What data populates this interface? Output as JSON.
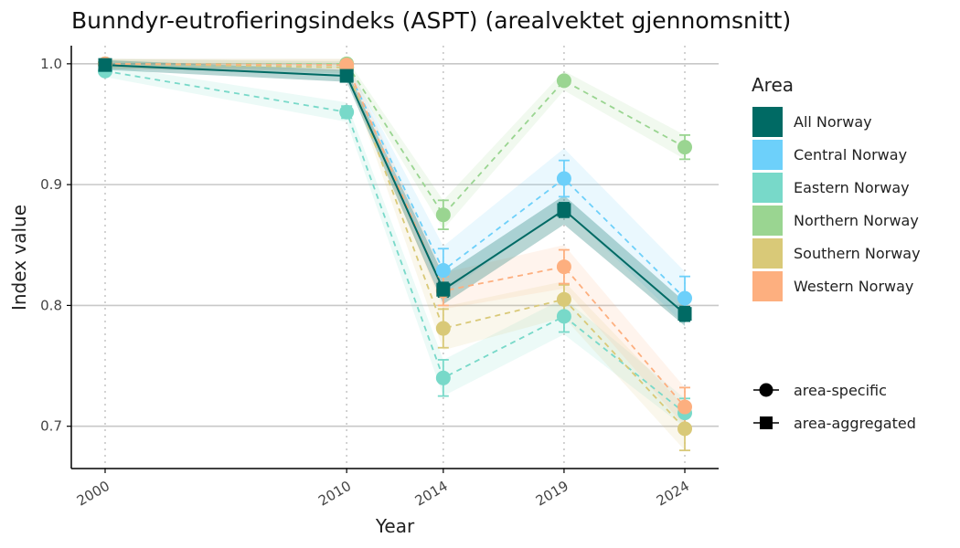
{
  "chart_data": {
    "type": "line",
    "title": "Bunndyr-eutrofieringsindeks (ASPT) (arealvektet gjennomsnitt)",
    "xlabel": "Year",
    "ylabel": "Index value",
    "x": [
      2000,
      2010,
      2014,
      2019,
      2024
    ],
    "x_tick_labels": [
      "2000",
      "2010",
      "2014",
      "2019",
      "2024"
    ],
    "xlim": [
      1998.6,
      2025.4
    ],
    "ylim": [
      0.665,
      1.015
    ],
    "y_ticks": [
      0.7,
      0.8,
      0.9,
      1.0
    ],
    "y_tick_labels": [
      "0.7",
      "0.8",
      "0.9",
      "1.0"
    ],
    "grid": {
      "horizontal": true,
      "vertical_dotted": true
    },
    "legend_position": "right",
    "legend_title": "Area",
    "series": [
      {
        "name": "All Norway",
        "color": "#006a64",
        "marker": "square",
        "line": "solid",
        "values": [
          0.999,
          0.99,
          0.813,
          0.879,
          0.793
        ],
        "err": [
          0.002,
          0.003,
          0.006,
          0.006,
          0.006
        ],
        "band": [
          0.004,
          0.005,
          0.012,
          0.012,
          0.01
        ]
      },
      {
        "name": "Central Norway",
        "color": "#6dd0fa",
        "marker": "circle",
        "line": "dashed",
        "values": [
          1.0,
          0.997,
          0.829,
          0.905,
          0.806
        ],
        "err": [
          0.002,
          0.003,
          0.018,
          0.015,
          0.018
        ],
        "band": [
          0.004,
          0.005,
          0.02,
          0.025,
          0.022
        ]
      },
      {
        "name": "Eastern Norway",
        "color": "#78d9c9",
        "marker": "circle",
        "line": "dashed",
        "values": [
          0.994,
          0.96,
          0.74,
          0.791,
          0.711
        ],
        "err": [
          0.003,
          0.005,
          0.015,
          0.013,
          0.012
        ],
        "band": [
          0.005,
          0.008,
          0.015,
          0.015,
          0.012
        ]
      },
      {
        "name": "Northern Norway",
        "color": "#9ad591",
        "marker": "circle",
        "line": "dashed",
        "values": [
          1.0,
          1.0,
          0.875,
          0.986,
          0.931
        ],
        "err": [
          0.002,
          0.002,
          0.012,
          0.003,
          0.01
        ],
        "band": [
          0.004,
          0.004,
          0.012,
          0.008,
          0.01
        ]
      },
      {
        "name": "Southern Norway",
        "color": "#d9c978",
        "marker": "circle",
        "line": "dashed",
        "values": [
          1.0,
          0.997,
          0.781,
          0.805,
          0.698
        ],
        "err": [
          0.002,
          0.003,
          0.016,
          0.012,
          0.018
        ],
        "band": [
          0.004,
          0.005,
          0.018,
          0.015,
          0.018
        ]
      },
      {
        "name": "Western Norway",
        "color": "#fdaf7f",
        "marker": "circle",
        "line": "dashed",
        "values": [
          1.0,
          0.999,
          0.812,
          0.832,
          0.716
        ],
        "err": [
          0.002,
          0.003,
          0.012,
          0.014,
          0.016
        ],
        "band": [
          0.004,
          0.005,
          0.015,
          0.018,
          0.016
        ]
      }
    ],
    "shape_legend": [
      {
        "shape": "circle",
        "label": "area-specific"
      },
      {
        "shape": "square",
        "label": "area-aggregated"
      }
    ]
  }
}
